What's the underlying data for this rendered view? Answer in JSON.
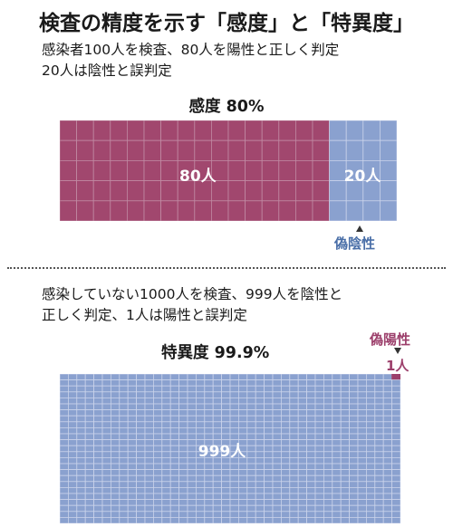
{
  "title": "検査の精度を示す「感度」と「特異度」",
  "sensitivity": {
    "desc_line1": "感染者100人を検査、80人を陽性と正しく判定",
    "desc_line2": "20人は陰性と誤判定",
    "heading": "感度 80%",
    "true_positive_label": "80人",
    "false_negative_label": "20人",
    "false_negative_annotation": "偽陰性"
  },
  "specificity": {
    "desc_line1": "感染していない1000人を検査、999人を陰性と",
    "desc_line2": "正しく判定、1人は陽性と誤判定",
    "heading": "特異度 99.9%",
    "true_negative_label": "999人",
    "false_positive_annotation": "偽陽性",
    "false_positive_count_label": "1人"
  },
  "chart_data": [
    {
      "type": "table",
      "title": "感度 80%",
      "grid": {
        "columns": 20,
        "rows": 5,
        "unit": "1人"
      },
      "series": [
        {
          "name": "80人",
          "values": [
            80
          ]
        },
        {
          "name": "20人",
          "values": [
            20
          ]
        }
      ]
    },
    {
      "type": "table",
      "title": "特異度 99.9%",
      "grid": {
        "columns": 40,
        "rows": 25,
        "unit": "1人"
      },
      "series": [
        {
          "name": "999人",
          "values": [
            999
          ]
        },
        {
          "name": "1人",
          "values": [
            1
          ]
        }
      ]
    }
  ],
  "colors": {
    "positive": "#a1476e",
    "negative": "#8aa1cf",
    "grid_line": "#c9d3ea",
    "grid_line_positive": "#c08aa3",
    "annotation_blue": "#4a6fa8",
    "annotation_red": "#9c3f6b",
    "arrow": "#333333"
  }
}
